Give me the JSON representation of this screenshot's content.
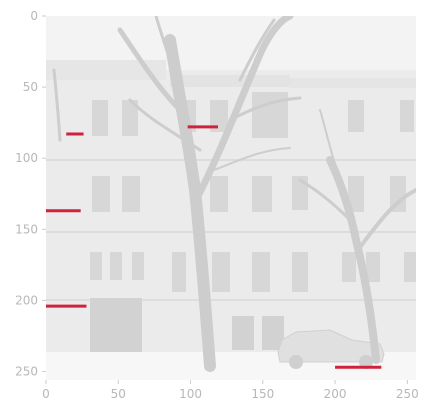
{
  "axes": {
    "x_ticks": [
      0,
      50,
      100,
      150,
      200,
      250
    ],
    "y_ticks": [
      0,
      50,
      100,
      150,
      200,
      250
    ],
    "xlim": [
      0,
      256
    ],
    "ylim": [
      256,
      0
    ],
    "tick_labels_x": [
      "0",
      "50",
      "100",
      "150",
      "200",
      "250"
    ],
    "tick_labels_y": [
      "0",
      "50",
      "100",
      "150",
      "200",
      "250"
    ]
  },
  "image": {
    "subject": "faded street scene with bare trees in front of a multi-storey building and a parked car in snow",
    "palette": {
      "sky": "#f3f3f3",
      "facade": "#e9e9e9",
      "window": "#d6d6d6",
      "tree": "#cfcfcf",
      "ground": "#f6f6f6",
      "car": "#e2e2e2"
    }
  },
  "annotations": {
    "color": "#d0223a",
    "segments": [
      {
        "x0": 14,
        "x1": 26,
        "y": 83
      },
      {
        "x0": 98,
        "x1": 119,
        "y": 78
      },
      {
        "x0": 0,
        "x1": 24,
        "y": 137
      },
      {
        "x0": 0,
        "x1": 28,
        "y": 204
      },
      {
        "x0": 200,
        "x1": 232,
        "y": 247
      }
    ]
  }
}
